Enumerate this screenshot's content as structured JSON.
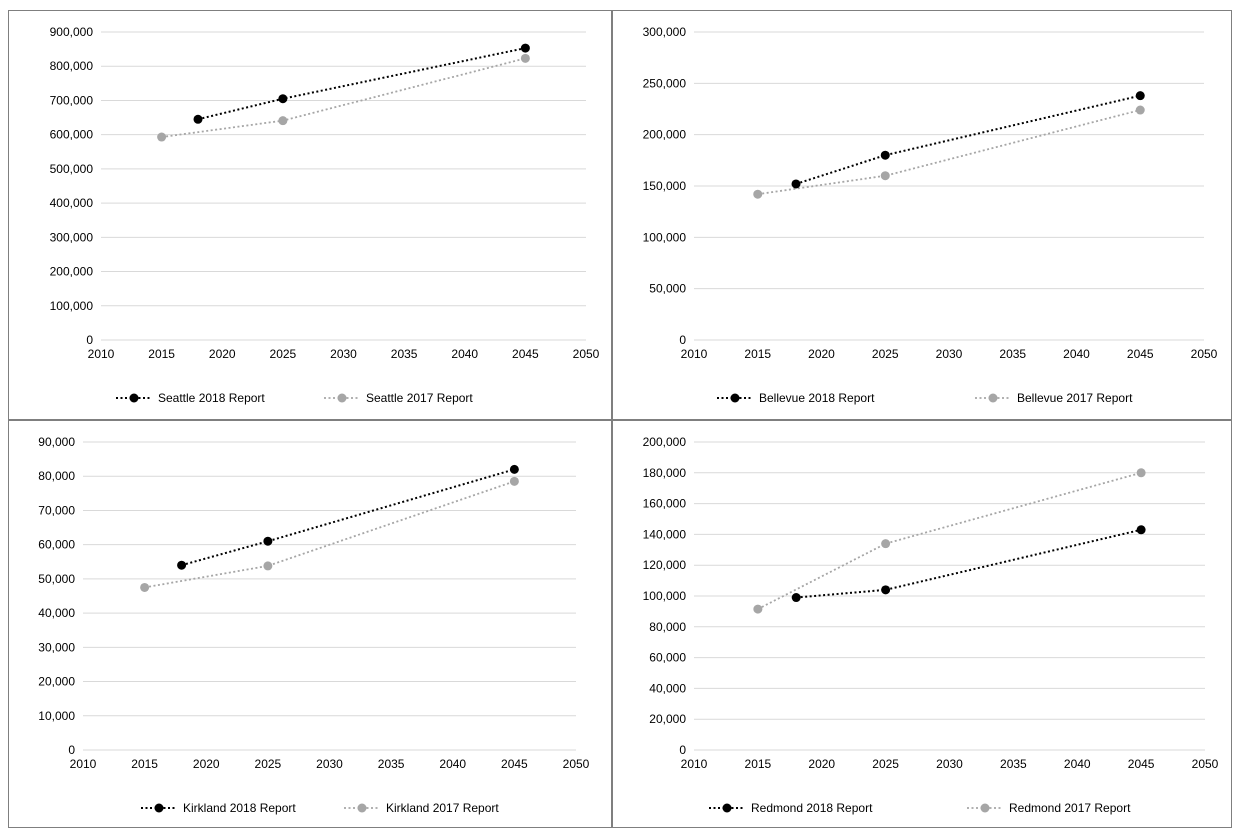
{
  "colors": {
    "report_2018": "#000000",
    "report_2017": "#a6a6a6",
    "gridline": "#d9d9d9",
    "border": "#7f7f7f"
  },
  "chart_data": [
    {
      "type": "scatter",
      "title": "",
      "xlabel": "",
      "ylabel": "",
      "xlim": [
        2010,
        2050
      ],
      "ylim": [
        0,
        900000
      ],
      "x_ticks": [
        "2010",
        "2015",
        "2020",
        "2025",
        "2030",
        "2035",
        "2040",
        "2045",
        "2050"
      ],
      "y_ticks": [
        "0",
        "100,000",
        "200,000",
        "300,000",
        "400,000",
        "500,000",
        "600,000",
        "700,000",
        "800,000",
        "900,000"
      ],
      "grid": true,
      "legend": "bottom",
      "series": [
        {
          "name": "Seattle 2018 Report",
          "x": [
            2018,
            2025,
            2045
          ],
          "y": [
            645000,
            705000,
            853000
          ]
        },
        {
          "name": "Seattle 2017 Report",
          "x": [
            2015,
            2025,
            2045
          ],
          "y": [
            593000,
            641000,
            823000
          ]
        }
      ]
    },
    {
      "type": "scatter",
      "title": "",
      "xlabel": "",
      "ylabel": "",
      "xlim": [
        2010,
        2050
      ],
      "ylim": [
        0,
        300000
      ],
      "x_ticks": [
        "2010",
        "2015",
        "2020",
        "2025",
        "2030",
        "2035",
        "2040",
        "2045",
        "2050"
      ],
      "y_ticks": [
        "0",
        "50,000",
        "100,000",
        "150,000",
        "200,000",
        "250,000",
        "300,000"
      ],
      "grid": true,
      "legend": "bottom",
      "series": [
        {
          "name": "Bellevue 2018 Report",
          "x": [
            2018,
            2025,
            2045
          ],
          "y": [
            152000,
            180000,
            238000
          ]
        },
        {
          "name": "Bellevue 2017 Report",
          "x": [
            2015,
            2025,
            2045
          ],
          "y": [
            142000,
            160000,
            224000
          ]
        }
      ]
    },
    {
      "type": "scatter",
      "title": "",
      "xlabel": "",
      "ylabel": "",
      "xlim": [
        2010,
        2050
      ],
      "ylim": [
        0,
        90000
      ],
      "x_ticks": [
        "2010",
        "2015",
        "2020",
        "2025",
        "2030",
        "2035",
        "2040",
        "2045",
        "2050"
      ],
      "y_ticks": [
        "0",
        "10,000",
        "20,000",
        "30,000",
        "40,000",
        "50,000",
        "60,000",
        "70,000",
        "80,000",
        "90,000"
      ],
      "grid": true,
      "legend": "bottom",
      "series": [
        {
          "name": "Kirkland 2018 Report",
          "x": [
            2018,
            2025,
            2045
          ],
          "y": [
            54000,
            61000,
            82000
          ]
        },
        {
          "name": "Kirkland 2017 Report",
          "x": [
            2015,
            2025,
            2045
          ],
          "y": [
            47500,
            53800,
            78500
          ]
        }
      ]
    },
    {
      "type": "scatter",
      "title": "",
      "xlabel": "",
      "ylabel": "",
      "xlim": [
        2010,
        2050
      ],
      "ylim": [
        0,
        200000
      ],
      "x_ticks": [
        "2010",
        "2015",
        "2020",
        "2025",
        "2030",
        "2035",
        "2040",
        "2045",
        "2050"
      ],
      "y_ticks": [
        "0",
        "20,000",
        "40,000",
        "60,000",
        "80,000",
        "100,000",
        "120,000",
        "140,000",
        "160,000",
        "180,000",
        "200,000"
      ],
      "grid": true,
      "legend": "bottom",
      "series": [
        {
          "name": "Redmond 2018 Report",
          "x": [
            2018,
            2025,
            2045
          ],
          "y": [
            99000,
            104000,
            143000
          ]
        },
        {
          "name": "Redmond 2017 Report",
          "x": [
            2015,
            2025,
            2045
          ],
          "y": [
            91500,
            134000,
            180000
          ]
        }
      ]
    }
  ]
}
